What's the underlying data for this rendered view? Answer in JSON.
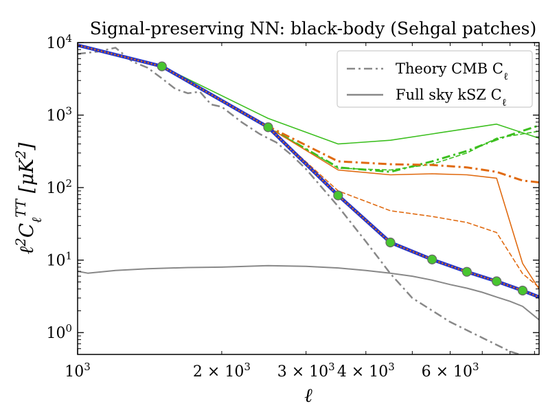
{
  "chart_data": {
    "type": "line",
    "title": "Signal-preserving NN: black-body (Sehgal patches)",
    "xlabel": "ℓ",
    "ylabel": "ℓ²C_ℓ^{TT} [μK²]",
    "xscale": "log",
    "yscale": "log",
    "xlim": [
      1000,
      9200
    ],
    "ylim": [
      0.5,
      10000
    ],
    "legend_position": "top-right",
    "x_ticks": [
      {
        "value": 1000,
        "base": "10",
        "exp": "3",
        "mantissa": ""
      },
      {
        "value": 2000,
        "base": "10",
        "exp": "3",
        "mantissa": "2 ×"
      },
      {
        "value": 3000,
        "base": "10",
        "exp": "3",
        "mantissa": "3 ×"
      },
      {
        "value": 4000,
        "base": "10",
        "exp": "3",
        "mantissa": "4 ×"
      },
      {
        "value": 6000,
        "base": "10",
        "exp": "3",
        "mantissa": "6 ×"
      }
    ],
    "y_ticks": [
      {
        "value": 1,
        "base": "10",
        "exp": "0"
      },
      {
        "value": 10,
        "base": "10",
        "exp": "1"
      },
      {
        "value": 100,
        "base": "10",
        "exp": "2"
      },
      {
        "value": 1000,
        "base": "10",
        "exp": "3"
      },
      {
        "value": 10000,
        "base": "10",
        "exp": "4"
      }
    ],
    "legend": [
      {
        "label": "Theory CMB C_ℓ",
        "style": "dashdot",
        "color": "#888888"
      },
      {
        "label": "Full sky kSZ C_ℓ",
        "style": "solid",
        "color": "#888888"
      }
    ],
    "series": [
      {
        "name": "Theory CMB C_ℓ",
        "color": "#888888",
        "style": "dashdot",
        "width": 2.5,
        "x": [
          1000,
          1100,
          1200,
          1300,
          1400,
          1500,
          1600,
          1700,
          1800,
          1900,
          2000,
          2200,
          2400,
          2600,
          2800,
          3000,
          3500,
          4000,
          4500,
          5000,
          6000,
          7000,
          8000,
          8800
        ],
        "y": [
          7000,
          7500,
          8500,
          5500,
          4500,
          3200,
          2300,
          2000,
          2100,
          1400,
          1300,
          800,
          550,
          420,
          280,
          180,
          55,
          18,
          6.5,
          3.0,
          1.4,
          0.85,
          0.55,
          0.45
        ]
      },
      {
        "name": "Full sky kSZ C_ℓ",
        "color": "#888888",
        "style": "solid",
        "width": 2,
        "x": [
          1000,
          1050,
          1200,
          1400,
          1700,
          2000,
          2500,
          3000,
          3500,
          4000,
          4500,
          5000,
          5500,
          6000,
          6500,
          7000,
          7500,
          8000,
          8500,
          9200
        ],
        "y": [
          7.0,
          6.6,
          7.2,
          7.6,
          7.9,
          8.0,
          8.4,
          8.2,
          7.8,
          7.2,
          6.6,
          6.0,
          5.3,
          4.6,
          4.1,
          3.6,
          3.1,
          2.7,
          2.3,
          1.5
        ]
      },
      {
        "name": "green thin solid",
        "color": "#3cbf1f",
        "style": "solid",
        "width": 1.6,
        "x": [
          1500,
          2500,
          3500,
          4500,
          5500,
          6500,
          7500,
          9200
        ],
        "y": [
          4700,
          900,
          400,
          450,
          550,
          650,
          750,
          480
        ]
      },
      {
        "name": "green dashdot",
        "color": "#3cbf1f",
        "style": "dashdot",
        "width": 3,
        "x": [
          1500,
          2500,
          3500,
          4500,
          5500,
          6500,
          7500,
          9200
        ],
        "y": [
          4700,
          680,
          190,
          165,
          230,
          320,
          460,
          720
        ]
      },
      {
        "name": "green dashed",
        "color": "#3cbf1f",
        "style": "dashed",
        "width": 1.6,
        "x": [
          1500,
          2500,
          3500,
          4500,
          5500,
          6500,
          7500,
          9200
        ],
        "y": [
          4700,
          690,
          185,
          175,
          210,
          300,
          480,
          600
        ]
      },
      {
        "name": "orange dashdot",
        "color": "#e06a10",
        "style": "dashdot",
        "width": 3,
        "x": [
          1500,
          2500,
          3500,
          4500,
          5500,
          6500,
          7500,
          8500,
          9200
        ],
        "y": [
          4700,
          700,
          230,
          210,
          205,
          190,
          165,
          125,
          118
        ]
      },
      {
        "name": "orange solid",
        "color": "#e06a10",
        "style": "solid",
        "width": 1.6,
        "x": [
          1500,
          2500,
          3500,
          4500,
          5500,
          6500,
          7500,
          8500,
          9200
        ],
        "y": [
          4700,
          680,
          175,
          150,
          155,
          150,
          135,
          9,
          4.0
        ]
      },
      {
        "name": "orange dashed",
        "color": "#e06a10",
        "style": "dashed",
        "width": 1.6,
        "x": [
          1500,
          2500,
          3500,
          4500,
          5500,
          6500,
          7500,
          8500,
          9200
        ],
        "y": [
          4700,
          670,
          90,
          48,
          40,
          33,
          24,
          6.5,
          4.2
        ]
      },
      {
        "name": "blue solid",
        "color": "#2233cc",
        "style": "solid",
        "width": 5,
        "x": [
          1000,
          1500,
          2500,
          3500,
          4500,
          5500,
          6500,
          7500,
          8500,
          9200
        ],
        "y": [
          9200,
          4700,
          680,
          78,
          17.5,
          10.2,
          6.9,
          5.1,
          3.8,
          3.1
        ]
      },
      {
        "name": "orange dotted",
        "color": "#e06a10",
        "style": "dotted",
        "width": 2.5,
        "x": [
          1000,
          1500,
          2500,
          3500,
          4500,
          5500,
          6500,
          7500,
          8500,
          9200
        ],
        "y": [
          9200,
          4700,
          680,
          78,
          17.5,
          10.2,
          6.9,
          5.1,
          3.8,
          3.1
        ]
      }
    ],
    "markers": {
      "color": "#48c530",
      "edge": "#666666",
      "x": [
        1500,
        2500,
        3500,
        4500,
        5500,
        6500,
        7500,
        8500
      ],
      "y": [
        4700,
        680,
        78,
        17.5,
        10.2,
        6.9,
        5.1,
        3.8
      ]
    }
  }
}
